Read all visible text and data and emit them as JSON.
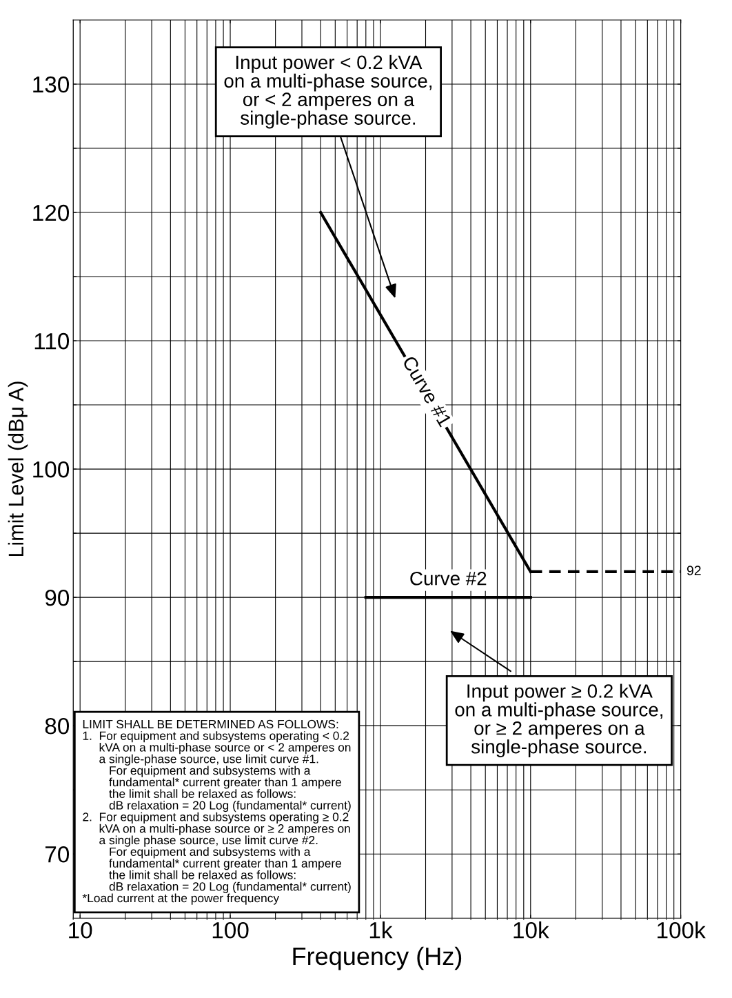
{
  "chart_data": {
    "type": "line",
    "xlabel": "Frequency (Hz)",
    "ylabel": "Limit Level (dBμ A)",
    "log": "x",
    "grid": true,
    "marker": "none",
    "xlim": [
      9,
      100000
    ],
    "xticks": [
      10,
      100,
      {
        "value": 1000,
        "label": "1k"
      },
      {
        "value": 10000,
        "label": "10k"
      },
      {
        "value": 100000,
        "label": "100k"
      }
    ],
    "ylim": [
      65,
      135
    ],
    "yticks": [
      70,
      {
        "value": 75,
        "label": null
      },
      80,
      {
        "value": 85,
        "label": null
      },
      90,
      {
        "value": 95,
        "label": null
      },
      100,
      {
        "value": 105,
        "label": null
      },
      110,
      {
        "value": 115,
        "label": null
      },
      120,
      {
        "value": 125,
        "label": null
      },
      130
    ],
    "series": [
      {
        "name": "Curve #1",
        "color": "#000000",
        "line_style": "solid",
        "x": [
          400,
          10000
        ],
        "values": [
          120,
          92
        ]
      },
      {
        "color": "#000000",
        "line_style": "dashed",
        "x": [
          10000,
          100000
        ],
        "values": [
          92,
          92
        ]
      },
      {
        "name": "Curve #2",
        "color": "#000000",
        "line_style": "solid",
        "x": [
          800,
          10000
        ],
        "values": [
          90,
          90
        ]
      }
    ],
    "annotations": [
      {
        "text": "92",
        "x": 100000,
        "y": 92
      },
      "Input power < 0.2 kVA\non a multi-phase source,\nor < 2 amperes on a\nsingle-phase source.",
      "Input power ≥ 0.2 kVA\non a multi-phase source,\nor ≥ 2 amperes on a\nsingle-phase source.",
      "LIMIT SHALL BE DETERMINED AS FOLLOWS:\n1.  For equipment and subsystems operating < 0.2\n     kVA on a multi-phase source or < 2 amperes on\n     a single-phase source, use limit curve #1.\n        For equipment and subsystems with a\n        fundamental* current greater than 1 ampere\n        the limit shall be relaxed as follows:\n        dB relaxation = 20 Log (fundamental* current)\n2.  For equipment and subsystems operating ≥ 0.2\n     kVA on a multi-phase source or ≥ 2 amperes on\n     a single phase source, use limit curve #2.\n        For equipment and subsystems with a\n        fundamental* current greater than 1 ampere\n        the limit shall be relaxed as follows:\n        dB relaxation = 20 Log (fundamental* current)\n*Load current at the power frequency"
    ]
  }
}
